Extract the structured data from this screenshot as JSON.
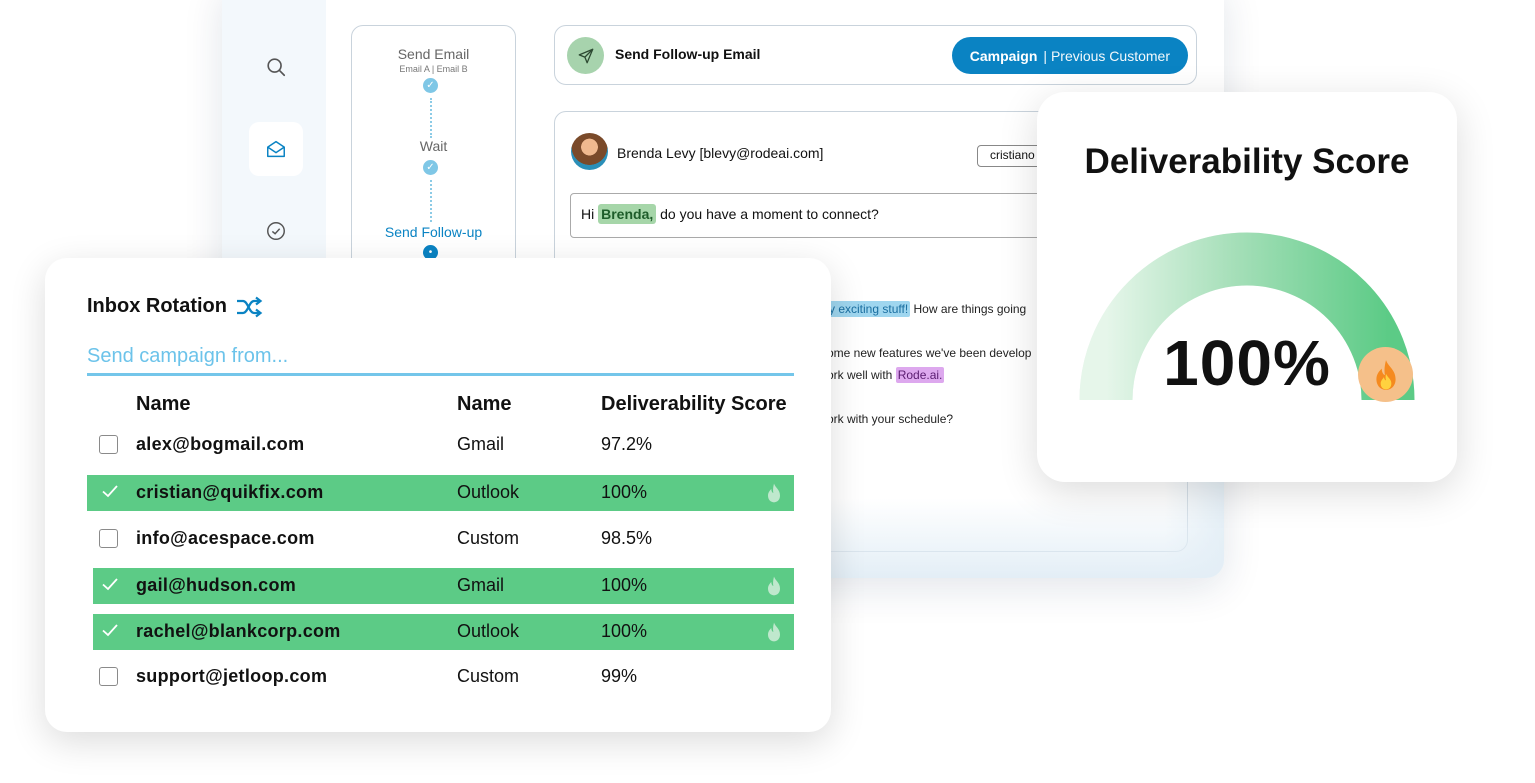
{
  "sequence": {
    "steps": [
      {
        "title": "Send Email",
        "subtitle": "Email A | Email B"
      },
      {
        "title": "Wait",
        "subtitle": ""
      },
      {
        "title": "Send Follow-up",
        "subtitle": ""
      }
    ],
    "header_title": "Send Follow-up Email",
    "campaign_label": "Campaign",
    "campaign_sub": "| Previous Customer"
  },
  "email": {
    "sender": "Brenda Levy [blevy@rodeai.com]",
    "to_chip": "cristiano",
    "subject_pre": "Hi ",
    "subject_tag": "Brenda,",
    "subject_post": " do you have a moment to connect?",
    "body": {
      "l1_tag": "y exciting stuff!",
      "l1_post": " How are things going",
      "l2": "ome new features we've been develop",
      "l3_pre": "ork well with ",
      "l3_tag": "Rode.ai.",
      "l4": "ork with your schedule?"
    }
  },
  "rotation": {
    "title": "Inbox Rotation",
    "placeholder": "Send campaign from...",
    "headers": [
      "Name",
      "Name",
      "Deliverability Score"
    ],
    "rows": [
      {
        "email": "alex@bogmail.com",
        "provider": "Gmail",
        "score": "97.2%",
        "selected": false
      },
      {
        "email": "cristian@quikfix.com",
        "provider": "Outlook",
        "score": "100%",
        "selected": true
      },
      {
        "email": "info@acespace.com",
        "provider": "Custom",
        "score": "98.5%",
        "selected": false
      },
      {
        "email": "gail@hudson.com",
        "provider": "Gmail",
        "score": "100%",
        "selected": true
      },
      {
        "email": "rachel@blankcorp.com",
        "provider": "Outlook",
        "score": "100%",
        "selected": true
      },
      {
        "email": "support@jetloop.com",
        "provider": "Custom",
        "score": "99%",
        "selected": false
      }
    ]
  },
  "deliverability": {
    "title": "Deliverability Score",
    "value": "100%",
    "level": 1.0
  },
  "colors": {
    "accent_blue": "#0a83c3",
    "selected_green": "#5ccb86",
    "gauge_green": "#5ccb86",
    "input_blue": "#74c6ea"
  },
  "icons": [
    "search-icon",
    "mail-icon",
    "check-circle-icon",
    "send-icon",
    "shuffle-icon",
    "check-icon",
    "fire-icon"
  ]
}
